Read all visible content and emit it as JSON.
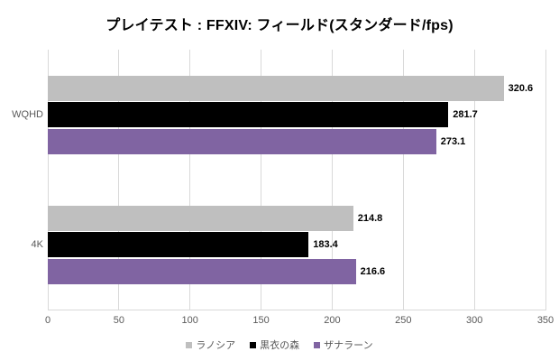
{
  "chart_data": {
    "type": "bar",
    "orientation": "horizontal",
    "title": "プレイテスト : FFXIV: フィールド(スタンダード/fps)",
    "categories": [
      "WQHD",
      "4K"
    ],
    "series": [
      {
        "name": "ラノシア",
        "color": "#BFBFBF",
        "values": [
          320.6,
          214.8
        ]
      },
      {
        "name": "黒衣の森",
        "color": "#000000",
        "values": [
          281.7,
          183.4
        ]
      },
      {
        "name": "ザナラーン",
        "color": "#8064A2",
        "values": [
          273.1,
          216.6
        ]
      }
    ],
    "xlim": [
      0,
      350
    ],
    "xticks": [
      0,
      50,
      100,
      150,
      200,
      250,
      300,
      350
    ],
    "grid": true,
    "value_labels": true,
    "legend_position": "bottom"
  },
  "style": {
    "background": "#FFFFFF",
    "gridline_color": "#D9D9D9",
    "axis_text_color": "#595959",
    "value_label_color": "#000000",
    "title_color": "#000000"
  }
}
